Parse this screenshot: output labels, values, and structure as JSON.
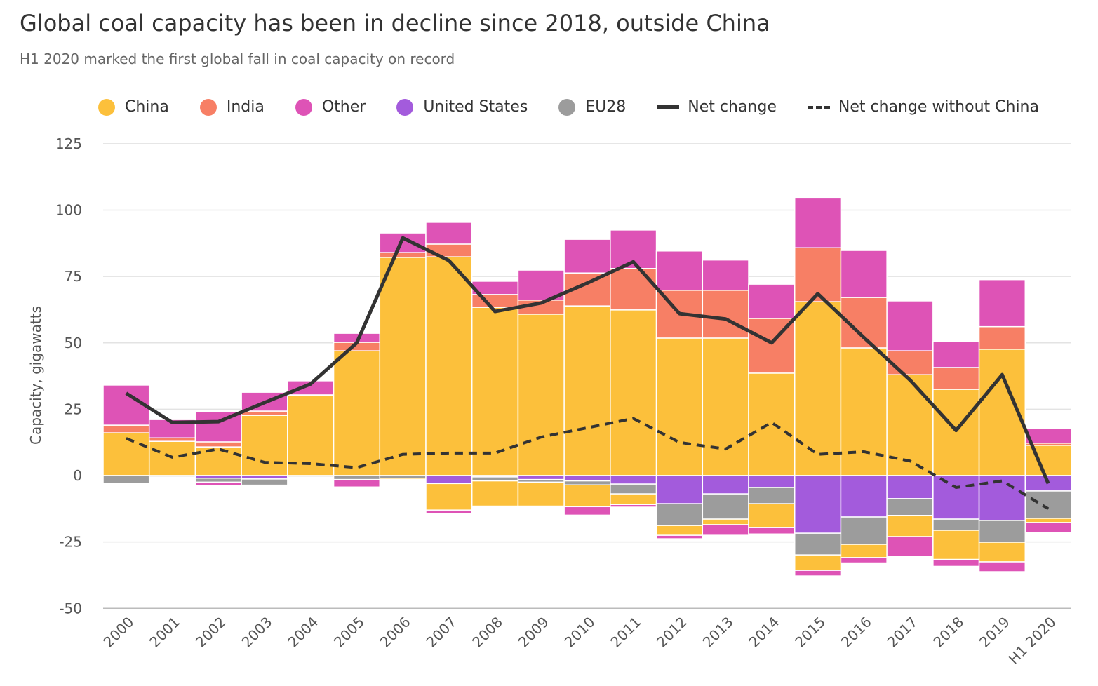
{
  "chart_data": {
    "type": "bar",
    "title": "Global coal capacity has been in decline since 2018, outside China",
    "subtitle": "H1 2020 marked the first global fall in coal capacity on record",
    "ylabel": "Capacity, gigawatts",
    "xlabel": "",
    "ylim": [
      -50,
      125
    ],
    "yticks": [
      125,
      100,
      75,
      50,
      25,
      0,
      -25,
      -50
    ],
    "grid": true,
    "legend_position": "top",
    "stacked": true,
    "categories": [
      "2000",
      "2001",
      "2002",
      "2003",
      "2004",
      "2005",
      "2006",
      "2007",
      "2008",
      "2009",
      "2010",
      "2011",
      "2012",
      "2013",
      "2014",
      "2015",
      "2016",
      "2017",
      "2018",
      "2019",
      "H1 2020"
    ],
    "additions": [
      {
        "name": "China",
        "color": "#fcc03b",
        "values": [
          16.1,
          12.9,
          10.8,
          22.7,
          30.1,
          47,
          82.2,
          82.4,
          63.4,
          60.8,
          63.9,
          62.4,
          51.8,
          51.8,
          38.6,
          65.5,
          48.1,
          38,
          32.5,
          47.6,
          11.4
        ]
      },
      {
        "name": "India",
        "color": "#f77f65",
        "values": [
          2.9,
          1.3,
          1.9,
          1.6,
          0.3,
          3.2,
          1.8,
          4.8,
          4.8,
          5.3,
          12.4,
          15.6,
          18,
          18,
          20.6,
          20.3,
          19,
          9,
          8.2,
          8.5,
          0.8
        ]
      },
      {
        "name": "Other",
        "color": "#de53b6",
        "values": [
          15.1,
          6.9,
          11.3,
          7.1,
          5.3,
          3.4,
          7.4,
          8.2,
          5,
          11.3,
          12.7,
          14.5,
          14.8,
          11.4,
          12.9,
          19,
          17.7,
          18.8,
          9.8,
          17.7,
          5.5
        ]
      }
    ],
    "retirements": [
      {
        "name": "United States",
        "color": "#a35bdc",
        "values": [
          0,
          0,
          -1,
          -1.3,
          0,
          0,
          0,
          -3,
          -0.5,
          -1.5,
          -2,
          -3.2,
          -10.6,
          -6.9,
          -4.5,
          -21.7,
          -15.6,
          -8.7,
          -16.4,
          -16.9,
          -5.8
        ]
      },
      {
        "name": "EU28",
        "color": "#9c9c9c",
        "values": [
          -2.9,
          -0.5,
          -1.5,
          -2.3,
          -0.5,
          -1.5,
          -1,
          0,
          -1.5,
          -1,
          -1.5,
          -3.7,
          -8.2,
          -9.5,
          -6.1,
          -8.2,
          -10.3,
          -6.3,
          -4.2,
          -8.2,
          -10.3
        ]
      },
      {
        "name": "China",
        "color": "#fcc03b",
        "values": [
          0,
          0,
          0,
          0,
          0,
          0,
          -0.5,
          -10,
          -9.5,
          -9,
          -8.2,
          -4,
          -3.7,
          -2.1,
          -9,
          -5.8,
          -5,
          -8,
          -11,
          -7.4,
          -1.6
        ]
      },
      {
        "name": "Other",
        "color": "#de53b6",
        "values": [
          0,
          0,
          -1.3,
          0,
          0,
          -2.8,
          0,
          -1.3,
          0,
          0,
          -3.2,
          -1,
          -1.3,
          -4,
          -2.4,
          -2.1,
          -2,
          -7.4,
          -2.6,
          -3.7,
          -3.7
        ]
      }
    ],
    "lines": [
      {
        "name": "Net change",
        "style": "solid",
        "color": "#333333",
        "values": [
          31,
          20,
          20.3,
          27.5,
          34.5,
          50,
          89.5,
          81,
          61.8,
          65,
          72.5,
          80.5,
          61,
          59,
          50,
          68.5,
          52,
          36,
          17,
          38,
          -3
        ]
      },
      {
        "name": "Net change without China",
        "style": "dashed",
        "color": "#333333",
        "values": [
          14,
          6.9,
          10,
          5,
          4.5,
          3,
          8,
          8.5,
          8.5,
          14.5,
          18,
          21.5,
          12.5,
          10,
          20,
          8,
          9,
          5.5,
          -4.5,
          -2,
          -12.5
        ]
      }
    ],
    "legend": [
      {
        "label": "China",
        "color": "#fcc03b",
        "kind": "dot"
      },
      {
        "label": "India",
        "color": "#f77f65",
        "kind": "dot"
      },
      {
        "label": "Other",
        "color": "#de53b6",
        "kind": "dot"
      },
      {
        "label": "United States",
        "color": "#a35bdc",
        "kind": "dot"
      },
      {
        "label": "EU28",
        "color": "#9c9c9c",
        "kind": "dot"
      },
      {
        "label": "Net change",
        "kind": "line"
      },
      {
        "label": "Net change without China",
        "kind": "dash"
      }
    ]
  }
}
